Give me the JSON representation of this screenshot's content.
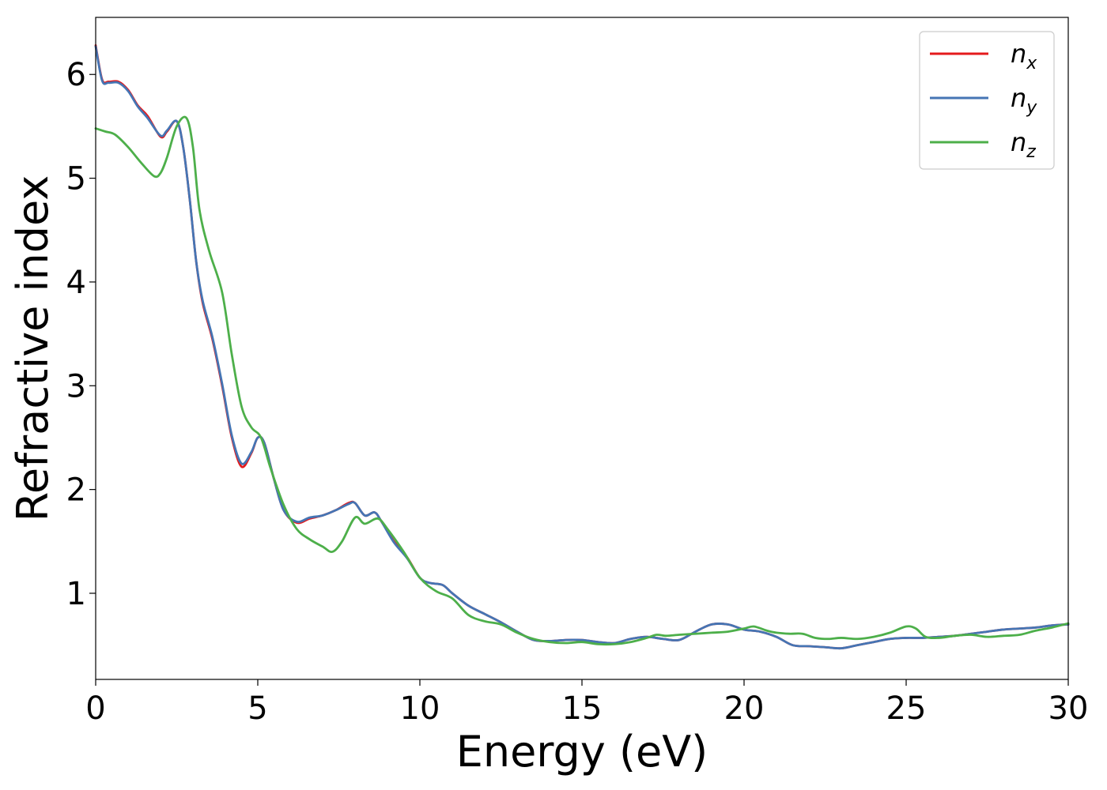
{
  "chart_data": {
    "type": "line",
    "xlabel": "Energy (eV)",
    "ylabel": "Refractive index",
    "xlim": [
      0,
      30
    ],
    "ylim": [
      0.17,
      6.55
    ],
    "xticks": [
      0,
      5,
      10,
      15,
      20,
      25,
      30
    ],
    "yticks": [
      1,
      2,
      3,
      4,
      5,
      6
    ],
    "grid": false,
    "legend_position": "top-right",
    "series": [
      {
        "name": "n_x",
        "label_base": "n",
        "label_sub": "x",
        "color": "#e41a1c",
        "x": [
          0,
          0.2,
          0.4,
          0.7,
          1.0,
          1.3,
          1.6,
          2.0,
          2.2,
          2.5,
          2.7,
          2.9,
          3.1,
          3.3,
          3.6,
          3.9,
          4.2,
          4.5,
          4.8,
          5.0,
          5.2,
          5.5,
          5.8,
          6.2,
          6.6,
          7.0,
          7.4,
          7.8,
          8.0,
          8.3,
          8.6,
          8.8,
          9.2,
          9.6,
          10.0,
          10.3,
          10.7,
          11.0,
          11.5,
          12.0,
          12.5,
          13.0,
          13.5,
          14.0,
          14.5,
          15.0,
          15.5,
          16.0,
          16.5,
          17.0,
          17.5,
          18.0,
          18.5,
          19.0,
          19.5,
          20.0,
          20.5,
          21.0,
          21.5,
          22.0,
          22.5,
          23.0,
          23.5,
          24.0,
          24.5,
          25.0,
          25.5,
          26.0,
          26.5,
          27.0,
          27.5,
          28.0,
          28.5,
          29.0,
          29.5,
          30.0
        ],
        "y": [
          6.28,
          5.95,
          5.93,
          5.93,
          5.85,
          5.7,
          5.6,
          5.4,
          5.45,
          5.55,
          5.3,
          4.8,
          4.2,
          3.8,
          3.45,
          3.0,
          2.5,
          2.22,
          2.35,
          2.5,
          2.45,
          2.1,
          1.8,
          1.68,
          1.72,
          1.75,
          1.8,
          1.87,
          1.87,
          1.75,
          1.78,
          1.7,
          1.5,
          1.35,
          1.15,
          1.1,
          1.08,
          1.0,
          0.88,
          0.8,
          0.72,
          0.63,
          0.55,
          0.54,
          0.55,
          0.55,
          0.53,
          0.52,
          0.56,
          0.58,
          0.56,
          0.55,
          0.63,
          0.7,
          0.7,
          0.65,
          0.63,
          0.58,
          0.5,
          0.49,
          0.48,
          0.47,
          0.5,
          0.53,
          0.56,
          0.57,
          0.57,
          0.58,
          0.59,
          0.61,
          0.63,
          0.65,
          0.66,
          0.67,
          0.69,
          0.7
        ]
      },
      {
        "name": "n_y",
        "label_base": "n",
        "label_sub": "y",
        "color": "#4575b4",
        "x": [
          0,
          0.2,
          0.4,
          0.7,
          1.0,
          1.3,
          1.6,
          2.0,
          2.2,
          2.5,
          2.7,
          2.9,
          3.1,
          3.3,
          3.6,
          3.9,
          4.2,
          4.5,
          4.8,
          5.0,
          5.2,
          5.5,
          5.8,
          6.2,
          6.6,
          7.0,
          7.4,
          7.8,
          8.0,
          8.3,
          8.6,
          8.8,
          9.2,
          9.6,
          10.0,
          10.3,
          10.7,
          11.0,
          11.5,
          12.0,
          12.5,
          13.0,
          13.5,
          14.0,
          14.5,
          15.0,
          15.5,
          16.0,
          16.5,
          17.0,
          17.5,
          18.0,
          18.5,
          19.0,
          19.5,
          20.0,
          20.5,
          21.0,
          21.5,
          22.0,
          22.5,
          23.0,
          23.5,
          24.0,
          24.5,
          25.0,
          25.5,
          26.0,
          26.5,
          27.0,
          27.5,
          28.0,
          28.5,
          29.0,
          29.5,
          30.0
        ],
        "y": [
          6.27,
          5.94,
          5.92,
          5.92,
          5.84,
          5.69,
          5.58,
          5.41,
          5.46,
          5.55,
          5.3,
          4.8,
          4.2,
          3.82,
          3.47,
          3.02,
          2.52,
          2.25,
          2.36,
          2.5,
          2.45,
          2.1,
          1.8,
          1.69,
          1.73,
          1.75,
          1.8,
          1.86,
          1.87,
          1.75,
          1.78,
          1.7,
          1.49,
          1.34,
          1.15,
          1.1,
          1.08,
          1.0,
          0.88,
          0.8,
          0.72,
          0.63,
          0.55,
          0.54,
          0.55,
          0.55,
          0.53,
          0.52,
          0.56,
          0.58,
          0.56,
          0.55,
          0.63,
          0.7,
          0.7,
          0.65,
          0.63,
          0.58,
          0.5,
          0.49,
          0.48,
          0.47,
          0.5,
          0.53,
          0.56,
          0.57,
          0.57,
          0.58,
          0.59,
          0.61,
          0.63,
          0.65,
          0.66,
          0.67,
          0.69,
          0.7
        ]
      },
      {
        "name": "n_z",
        "label_base": "n",
        "label_sub": "z",
        "color": "#4daf4a",
        "x": [
          0,
          0.3,
          0.6,
          1.0,
          1.4,
          1.8,
          2.0,
          2.2,
          2.5,
          2.8,
          3.0,
          3.2,
          3.5,
          3.9,
          4.2,
          4.5,
          4.8,
          5.1,
          5.4,
          5.8,
          6.2,
          6.6,
          7.0,
          7.3,
          7.6,
          8.0,
          8.3,
          8.7,
          9.0,
          9.5,
          10.0,
          10.5,
          11.0,
          11.5,
          12.0,
          12.5,
          13.0,
          13.5,
          14.0,
          14.5,
          15.0,
          15.5,
          16.0,
          16.5,
          17.0,
          17.3,
          17.6,
          18.0,
          18.5,
          19.0,
          19.5,
          20.0,
          20.3,
          20.7,
          21.0,
          21.4,
          21.8,
          22.2,
          22.6,
          23.0,
          23.5,
          24.0,
          24.5,
          25.0,
          25.3,
          25.6,
          26.0,
          26.5,
          27.0,
          27.5,
          28.0,
          28.5,
          29.0,
          29.5,
          30.0
        ],
        "y": [
          5.48,
          5.45,
          5.42,
          5.3,
          5.15,
          5.02,
          5.05,
          5.2,
          5.5,
          5.58,
          5.3,
          4.7,
          4.3,
          3.9,
          3.3,
          2.8,
          2.6,
          2.5,
          2.2,
          1.85,
          1.62,
          1.52,
          1.45,
          1.4,
          1.5,
          1.73,
          1.67,
          1.72,
          1.62,
          1.4,
          1.15,
          1.02,
          0.95,
          0.79,
          0.73,
          0.7,
          0.62,
          0.56,
          0.53,
          0.52,
          0.53,
          0.51,
          0.51,
          0.53,
          0.57,
          0.6,
          0.59,
          0.6,
          0.61,
          0.62,
          0.63,
          0.66,
          0.68,
          0.64,
          0.62,
          0.61,
          0.61,
          0.57,
          0.56,
          0.57,
          0.56,
          0.58,
          0.62,
          0.68,
          0.66,
          0.58,
          0.57,
          0.59,
          0.6,
          0.58,
          0.59,
          0.6,
          0.64,
          0.67,
          0.71
        ]
      }
    ]
  }
}
